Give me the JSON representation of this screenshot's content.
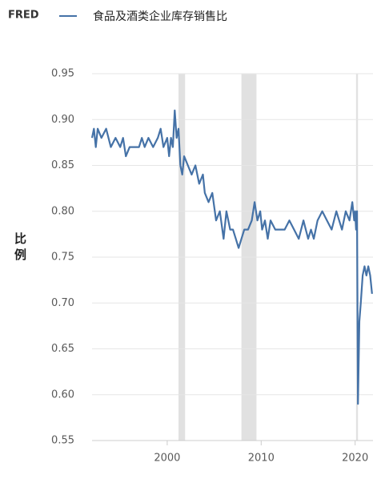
{
  "logo": "FRED",
  "chart_data": {
    "type": "line",
    "x": [
      1992.0,
      1992.2,
      1992.4,
      1992.6,
      1993.0,
      1993.5,
      1994.0,
      1994.5,
      1995.0,
      1995.3,
      1995.6,
      1996.0,
      1996.5,
      1997.0,
      1997.3,
      1997.6,
      1998.0,
      1998.5,
      1999.0,
      1999.3,
      1999.6,
      2000.0,
      2000.2,
      2000.4,
      2000.6,
      2000.8,
      2001.0,
      2001.2,
      2001.4,
      2001.6,
      2001.8,
      2002.2,
      2002.6,
      2003.0,
      2003.4,
      2003.8,
      2004.0,
      2004.4,
      2004.8,
      2005.2,
      2005.6,
      2006.0,
      2006.3,
      2006.7,
      2007.0,
      2007.3,
      2007.6,
      2007.9,
      2008.2,
      2008.6,
      2009.0,
      2009.3,
      2009.6,
      2009.9,
      2010.1,
      2010.4,
      2010.7,
      2011.0,
      2011.5,
      2012.0,
      2012.5,
      2013.0,
      2013.5,
      2014.0,
      2014.5,
      2015.0,
      2015.3,
      2015.6,
      2016.0,
      2016.5,
      2017.0,
      2017.5,
      2018.0,
      2018.3,
      2018.6,
      2019.0,
      2019.4,
      2019.7,
      2019.9,
      2020.0,
      2020.1,
      2020.2,
      2020.3,
      2020.45,
      2020.6,
      2020.8,
      2021.0,
      2021.2,
      2021.4,
      2021.6,
      2021.8
    ],
    "series": [
      {
        "name": "食品及酒类企业库存销售比",
        "color": "#4572a7",
        "values": [
          0.88,
          0.89,
          0.87,
          0.89,
          0.88,
          0.89,
          0.87,
          0.88,
          0.87,
          0.88,
          0.86,
          0.87,
          0.87,
          0.87,
          0.88,
          0.87,
          0.88,
          0.87,
          0.88,
          0.89,
          0.87,
          0.88,
          0.86,
          0.88,
          0.87,
          0.91,
          0.88,
          0.89,
          0.85,
          0.84,
          0.86,
          0.85,
          0.84,
          0.85,
          0.83,
          0.84,
          0.82,
          0.81,
          0.82,
          0.79,
          0.8,
          0.77,
          0.8,
          0.78,
          0.78,
          0.77,
          0.76,
          0.77,
          0.78,
          0.78,
          0.79,
          0.81,
          0.79,
          0.8,
          0.78,
          0.79,
          0.77,
          0.79,
          0.78,
          0.78,
          0.78,
          0.79,
          0.78,
          0.77,
          0.79,
          0.77,
          0.78,
          0.77,
          0.79,
          0.8,
          0.79,
          0.78,
          0.8,
          0.79,
          0.78,
          0.8,
          0.79,
          0.81,
          0.79,
          0.8,
          0.78,
          0.8,
          0.59,
          0.68,
          0.7,
          0.73,
          0.74,
          0.73,
          0.74,
          0.73,
          0.71
        ]
      }
    ],
    "recessions": [
      [
        2001.2,
        2001.9
      ],
      [
        2007.9,
        2009.5
      ],
      [
        2020.1,
        2020.3
      ]
    ],
    "y_label": "比例",
    "xlim": [
      1992,
      2021.9
    ],
    "xticks": [
      2000,
      2010,
      2020
    ],
    "ylim": [
      0.55,
      0.95
    ],
    "yticks": [
      0.95,
      {
        "value": 0.9,
        "label": "0.90"
      },
      0.85,
      {
        "value": 0.8,
        "label": "0.80"
      },
      0.75,
      {
        "value": 0.7,
        "label": "0.70"
      },
      0.65,
      {
        "value": 0.6,
        "label": "0.60"
      },
      0.55
    ],
    "grid": true
  }
}
